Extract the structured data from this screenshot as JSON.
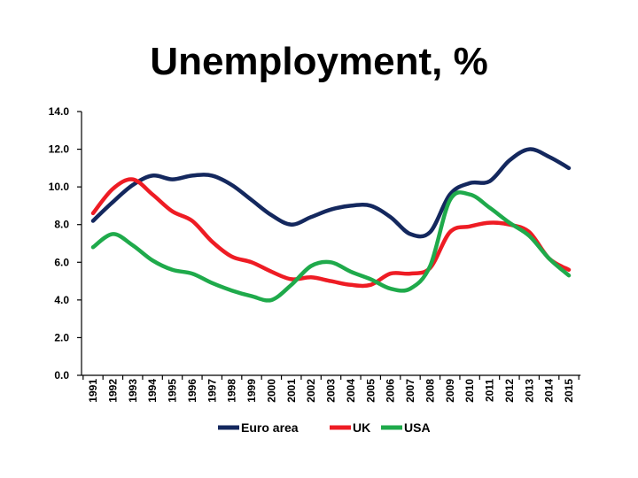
{
  "chart_data": {
    "type": "line",
    "title": "Unemployment, %",
    "xlabel": "",
    "ylabel": "",
    "ylim": [
      0,
      14
    ],
    "y_ticks": [
      "0.0",
      "2.0",
      "4.0",
      "6.0",
      "8.0",
      "10.0",
      "12.0",
      "14.0"
    ],
    "grid": false,
    "legend_position": "bottom",
    "categories": [
      "1991",
      "1992",
      "1993",
      "1994",
      "1995",
      "1996",
      "1997",
      "1998",
      "1999",
      "2000",
      "2001",
      "2002",
      "2003",
      "2004",
      "2005",
      "2006",
      "2007",
      "2008",
      "2009",
      "2010",
      "2011",
      "2012",
      "2013",
      "2014",
      "2015"
    ],
    "series": [
      {
        "name": "Euro area",
        "color": "#14285e",
        "values": [
          8.2,
          9.2,
          10.1,
          10.6,
          10.4,
          10.6,
          10.6,
          10.1,
          9.3,
          8.5,
          8.0,
          8.4,
          8.8,
          9.0,
          9.0,
          8.4,
          7.5,
          7.6,
          9.6,
          10.2,
          10.3,
          11.4,
          12.0,
          11.6,
          11.0
        ]
      },
      {
        "name": "UK",
        "color": "#ee1c24",
        "values": [
          8.6,
          9.9,
          10.4,
          9.6,
          8.7,
          8.2,
          7.1,
          6.3,
          6.0,
          5.5,
          5.1,
          5.2,
          5.0,
          4.8,
          4.8,
          5.4,
          5.4,
          5.7,
          7.6,
          7.9,
          8.1,
          8.0,
          7.6,
          6.2,
          5.6
        ]
      },
      {
        "name": "USA",
        "color": "#1faa4b",
        "values": [
          6.8,
          7.5,
          6.9,
          6.1,
          5.6,
          5.4,
          4.9,
          4.5,
          4.2,
          4.0,
          4.8,
          5.8,
          6.0,
          5.5,
          5.1,
          4.6,
          4.6,
          5.8,
          9.3,
          9.6,
          8.9,
          8.1,
          7.4,
          6.2,
          5.3
        ]
      }
    ]
  }
}
